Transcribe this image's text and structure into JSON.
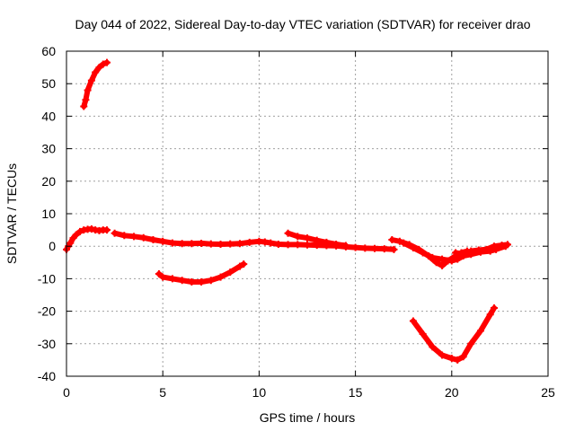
{
  "chart_data": {
    "type": "scatter",
    "title": "Day 044 of 2022, Sidereal Day-to-day VTEC variation (SDTVAR) for receiver drao",
    "xlabel": "GPS time / hours",
    "ylabel": "SDTVAR / TECUs",
    "xlim": [
      0,
      25
    ],
    "ylim": [
      -40,
      60
    ],
    "xticks": [
      0,
      5,
      10,
      15,
      20,
      25
    ],
    "yticks": [
      -40,
      -30,
      -20,
      -10,
      0,
      10,
      20,
      30,
      40,
      50,
      60
    ],
    "grid": true,
    "legend": "none",
    "color": "#ff0000",
    "series": [
      {
        "name": "arc-high",
        "points": [
          [
            0.9,
            43
          ],
          [
            1.0,
            45
          ],
          [
            1.1,
            48
          ],
          [
            1.3,
            51
          ],
          [
            1.5,
            53.5
          ],
          [
            1.7,
            55
          ],
          [
            1.9,
            56
          ],
          [
            2.1,
            56.5
          ]
        ]
      },
      {
        "name": "arc-start",
        "points": [
          [
            0.0,
            -1
          ],
          [
            0.1,
            0
          ],
          [
            0.2,
            1
          ],
          [
            0.35,
            2.5
          ],
          [
            0.5,
            3.5
          ],
          [
            0.7,
            4.5
          ],
          [
            0.9,
            5
          ],
          [
            1.1,
            5.2
          ],
          [
            1.3,
            5.3
          ],
          [
            1.5,
            5
          ],
          [
            1.7,
            4.8
          ],
          [
            1.9,
            5
          ],
          [
            2.1,
            5
          ]
        ]
      },
      {
        "name": "arc-main",
        "points": [
          [
            2.5,
            4
          ],
          [
            3,
            3.3
          ],
          [
            3.5,
            3
          ],
          [
            4,
            2.6
          ],
          [
            4.5,
            2
          ],
          [
            5,
            1.5
          ],
          [
            5.5,
            1
          ],
          [
            6,
            0.8
          ],
          [
            6.5,
            0.8
          ],
          [
            7,
            0.9
          ],
          [
            7.5,
            0.7
          ],
          [
            8,
            0.6
          ],
          [
            8.5,
            0.7
          ],
          [
            9,
            0.8
          ],
          [
            9.5,
            1.2
          ],
          [
            10,
            1.5
          ],
          [
            10.3,
            1.3
          ],
          [
            10.6,
            1
          ],
          [
            11,
            0.6
          ],
          [
            11.5,
            0.5
          ],
          [
            12,
            0.5
          ],
          [
            12.5,
            0.4
          ],
          [
            13,
            0.3
          ],
          [
            13.5,
            0.2
          ],
          [
            14,
            0.1
          ],
          [
            14.5,
            -0.2
          ],
          [
            15,
            -0.4
          ],
          [
            15.5,
            -0.6
          ],
          [
            16,
            -0.7
          ],
          [
            16.5,
            -0.8
          ],
          [
            17,
            -1
          ]
        ]
      },
      {
        "name": "arc-mid",
        "points": [
          [
            11.5,
            4
          ],
          [
            12,
            3
          ],
          [
            12.5,
            2.5
          ],
          [
            13,
            1.8
          ],
          [
            13.5,
            1.2
          ],
          [
            14,
            0.6
          ],
          [
            14.5,
            0.2
          ]
        ]
      },
      {
        "name": "arc-late-a",
        "points": [
          [
            16.9,
            2
          ],
          [
            17.3,
            1.5
          ],
          [
            17.8,
            0.5
          ],
          [
            18.3,
            -1
          ],
          [
            18.8,
            -3
          ],
          [
            19.2,
            -5
          ],
          [
            19.5,
            -6
          ],
          [
            19.8,
            -4.5
          ],
          [
            20.2,
            -3
          ],
          [
            20.5,
            -2
          ],
          [
            20.8,
            -1.5
          ]
        ]
      },
      {
        "name": "arc-late-b",
        "points": [
          [
            17.5,
            1
          ],
          [
            18,
            -0.5
          ],
          [
            18.5,
            -2
          ],
          [
            19,
            -3.5
          ],
          [
            19.5,
            -4
          ],
          [
            20,
            -4.5
          ],
          [
            20.3,
            -4
          ],
          [
            20.6,
            -3
          ],
          [
            21,
            -2.5
          ],
          [
            21.5,
            -1.8
          ],
          [
            22,
            -1.5
          ],
          [
            22.3,
            -1
          ],
          [
            22.8,
            0
          ]
        ]
      },
      {
        "name": "arc-late-c",
        "points": [
          [
            20.2,
            -2
          ],
          [
            20.6,
            -2.5
          ],
          [
            21,
            -1.5
          ],
          [
            21.4,
            -1.2
          ],
          [
            21.8,
            -1
          ],
          [
            22.2,
            0
          ],
          [
            22.6,
            0.3
          ],
          [
            22.9,
            0.5
          ]
        ]
      },
      {
        "name": "arc-neg-mid",
        "points": [
          [
            4.8,
            -8.5
          ],
          [
            5,
            -9.5
          ],
          [
            5.5,
            -10
          ],
          [
            6,
            -10.5
          ],
          [
            6.5,
            -11
          ],
          [
            7,
            -11
          ],
          [
            7.5,
            -10.5
          ],
          [
            8,
            -9.5
          ],
          [
            8.5,
            -8
          ],
          [
            9.0,
            -6.2
          ],
          [
            9.2,
            -5.5
          ]
        ]
      },
      {
        "name": "arc-neg-late",
        "points": [
          [
            18.0,
            -23
          ],
          [
            18.5,
            -27
          ],
          [
            19,
            -31
          ],
          [
            19.5,
            -33.5
          ],
          [
            20,
            -34.5
          ],
          [
            20.3,
            -35
          ],
          [
            20.6,
            -34
          ],
          [
            21,
            -30
          ],
          [
            21.5,
            -26
          ],
          [
            22,
            -21
          ],
          [
            22.2,
            -19
          ]
        ]
      }
    ]
  }
}
